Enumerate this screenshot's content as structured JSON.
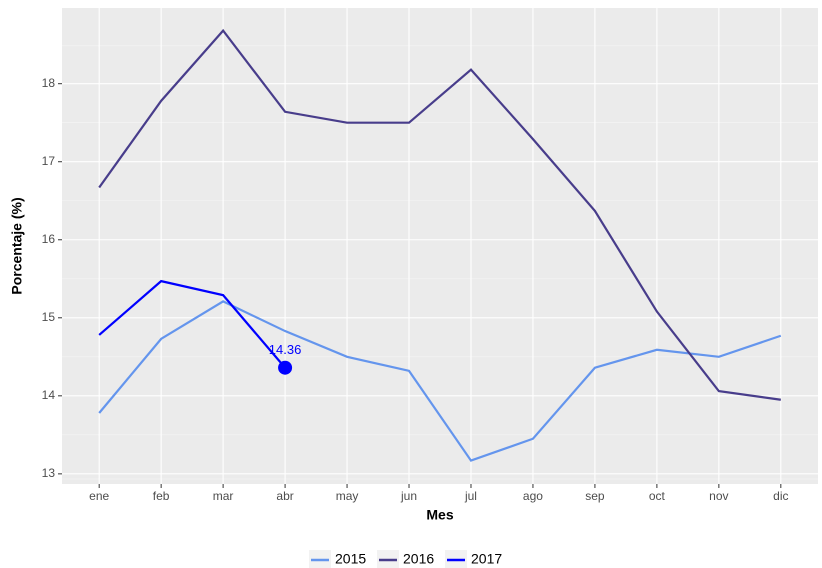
{
  "chart_data": {
    "type": "line",
    "x_label": "Mes",
    "y_label": "Porcentaje (%)",
    "categories": [
      "ene",
      "feb",
      "mar",
      "abr",
      "may",
      "jun",
      "jul",
      "ago",
      "sep",
      "oct",
      "nov",
      "dic"
    ],
    "series": [
      {
        "name": "2015",
        "color": "#6495ed",
        "values": [
          13.78,
          14.73,
          15.21,
          14.83,
          14.5,
          14.32,
          13.17,
          13.45,
          14.36,
          14.59,
          14.5,
          14.77
        ]
      },
      {
        "name": "2016",
        "color": "#483d8b",
        "values": [
          16.67,
          17.78,
          18.68,
          17.64,
          17.5,
          17.5,
          18.18,
          17.29,
          16.37,
          15.08,
          14.06,
          13.95
        ]
      },
      {
        "name": "2017",
        "color": "#0000ff",
        "values": [
          14.78,
          15.47,
          15.29,
          14.36,
          null,
          null,
          null,
          null,
          null,
          null,
          null,
          null
        ]
      }
    ],
    "highlight": {
      "series": 2,
      "index": 3
    },
    "ylim": [
      12.87,
      18.97
    ],
    "yticks": [
      13,
      14,
      15,
      16,
      17,
      18
    ],
    "grid": true,
    "legend": "bottom"
  }
}
